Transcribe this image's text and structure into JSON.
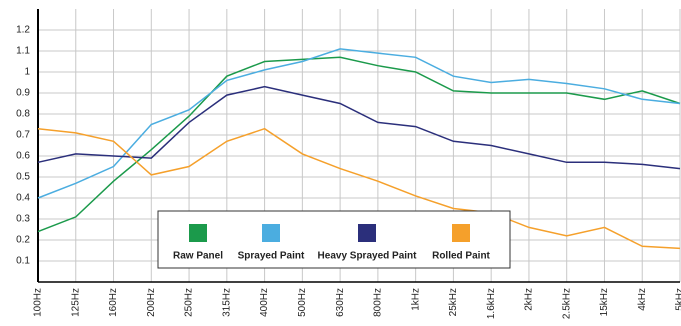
{
  "chart_data": {
    "type": "line",
    "categories": [
      "100Hz",
      "125Hz",
      "160Hz",
      "200Hz",
      "250Hz",
      "315Hz",
      "400Hz",
      "500Hz",
      "630Hz",
      "800Hz",
      "1kHz",
      "25kHz",
      "1.6kHz",
      "2kHz",
      "2.5kHz",
      "15kHz",
      "4kHz",
      "5kHz"
    ],
    "series": [
      {
        "name": "Raw Panel",
        "color": "#1b9a4b",
        "values": [
          0.24,
          0.31,
          0.48,
          0.63,
          0.79,
          0.98,
          1.05,
          1.06,
          1.07,
          1.03,
          1.0,
          0.91,
          0.9,
          0.9,
          0.9,
          0.87,
          0.91,
          0.85
        ]
      },
      {
        "name": "Sprayed Paint",
        "color": "#4badE0",
        "values": [
          0.4,
          0.47,
          0.55,
          0.75,
          0.82,
          0.96,
          1.01,
          1.05,
          1.11,
          1.09,
          1.07,
          0.98,
          0.95,
          0.965,
          0.945,
          0.92,
          0.87,
          0.85
        ]
      },
      {
        "name": "Heavy Sprayed Paint",
        "color": "#2b2f7b",
        "values": [
          0.57,
          0.61,
          0.6,
          0.59,
          0.76,
          0.89,
          0.93,
          0.89,
          0.85,
          0.76,
          0.74,
          0.67,
          0.65,
          0.61,
          0.57,
          0.57,
          0.56,
          0.54
        ]
      },
      {
        "name": "Rolled Paint",
        "color": "#f5a02b",
        "values": [
          0.73,
          0.71,
          0.67,
          0.51,
          0.55,
          0.67,
          0.73,
          0.61,
          0.54,
          0.48,
          0.41,
          0.35,
          0.33,
          0.26,
          0.22,
          0.26,
          0.17,
          0.16
        ]
      }
    ],
    "ylim": [
      0,
      1.3
    ],
    "yticks": [
      0.1,
      0.2,
      0.3,
      0.4,
      0.5,
      0.6,
      0.7,
      0.8,
      0.9,
      1.0,
      1.1,
      1.2
    ],
    "grid": true
  }
}
